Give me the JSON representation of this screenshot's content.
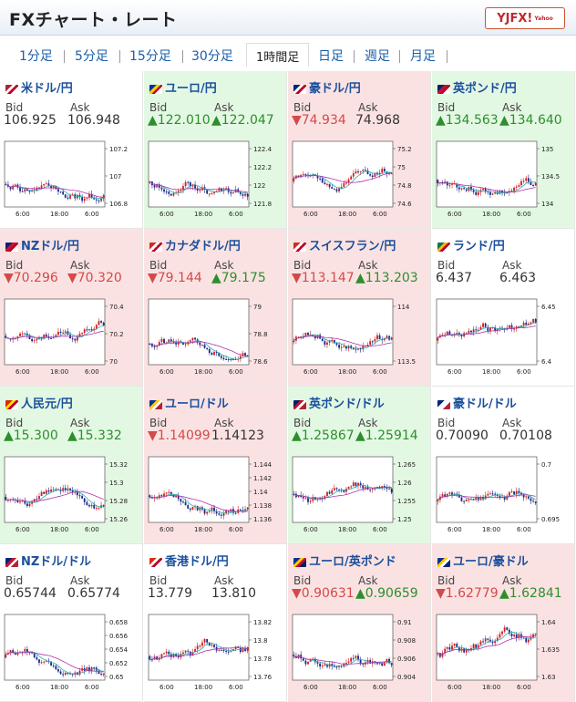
{
  "page": {
    "title": "FXチャート・レート",
    "logo": "YJFX!",
    "logo_sub": "Yahoo"
  },
  "tabs": [
    "1分足",
    "5分足",
    "15分足",
    "30分足",
    "1時間足",
    "日足",
    "週足",
    "月足"
  ],
  "active_tab": "1時間足",
  "colors": {
    "up_bg": "#e3f8e3",
    "down_bg": "#fbe2e2",
    "up_text": "#2c8f2c",
    "down_text": "#d34a4a",
    "candle_up": "#d02020",
    "candle_down": "#1a2a88",
    "ma_short": "#2bb0b0",
    "ma_long": "#b030b0"
  },
  "pairs": [
    {
      "name": "米ドル/円",
      "icon": "us-jp-flag-icon",
      "status": "flat",
      "bid_label": "Bid",
      "ask_label": "Ask",
      "bid": "106.925",
      "ask": "106.948",
      "bid_dir": "flat",
      "ask_dir": "flat",
      "x_ticks": [
        "6:00",
        "18:00",
        "6:00"
      ],
      "y_ticks": [
        "107.2",
        "107",
        "106.8"
      ]
    },
    {
      "name": "ユーロ/円",
      "icon": "eu-jp-flag-icon",
      "status": "up",
      "bid_label": "Bid",
      "ask_label": "Ask",
      "bid": "▲122.010",
      "ask": "▲122.047",
      "bid_dir": "up",
      "ask_dir": "up",
      "x_ticks": [
        "6:00",
        "18:00",
        "6:00"
      ],
      "y_ticks": [
        "122.4",
        "122.2",
        "122",
        "121.8"
      ]
    },
    {
      "name": "豪ドル/円",
      "icon": "au-jp-flag-icon",
      "status": "down",
      "bid_label": "Bid",
      "ask_label": "Ask",
      "bid": "▼74.934",
      "ask": "74.968",
      "bid_dir": "down",
      "ask_dir": "flat",
      "x_ticks": [
        "6:00",
        "18:00",
        "6:00"
      ],
      "y_ticks": [
        "75.2",
        "75",
        "74.8",
        "74.6"
      ]
    },
    {
      "name": "英ポンド/円",
      "icon": "gb-jp-flag-icon",
      "status": "up",
      "bid_label": "Bid",
      "ask_label": "Ask",
      "bid": "▲134.563",
      "ask": "▲134.640",
      "bid_dir": "up",
      "ask_dir": "up",
      "x_ticks": [
        "6:00",
        "18:00",
        "6:00"
      ],
      "y_ticks": [
        "135",
        "134.5",
        "134"
      ]
    },
    {
      "name": "NZドル/円",
      "icon": "nz-jp-flag-icon",
      "status": "down",
      "bid_label": "Bid",
      "ask_label": "Ask",
      "bid": "▼70.296",
      "ask": "▼70.320",
      "bid_dir": "down",
      "ask_dir": "down",
      "x_ticks": [
        "6:00",
        "18:00",
        "6:00"
      ],
      "y_ticks": [
        "70.4",
        "70.2",
        "70"
      ]
    },
    {
      "name": "カナダドル/円",
      "icon": "ca-jp-flag-icon",
      "status": "down",
      "bid_label": "Bid",
      "ask_label": "Ask",
      "bid": "▼79.144",
      "ask": "▲79.175",
      "bid_dir": "down",
      "ask_dir": "up",
      "x_ticks": [
        "6:00",
        "18:00",
        "6:00"
      ],
      "y_ticks": [
        "79",
        "78.8",
        "78.6"
      ]
    },
    {
      "name": "スイスフラン/円",
      "icon": "ch-jp-flag-icon",
      "status": "down",
      "bid_label": "Bid",
      "ask_label": "Ask",
      "bid": "▼113.147",
      "ask": "▲113.203",
      "bid_dir": "down",
      "ask_dir": "up",
      "x_ticks": [
        "6:00",
        "18:00",
        "6:00"
      ],
      "y_ticks": [
        "114",
        "113.5"
      ]
    },
    {
      "name": "ランド/円",
      "icon": "za-jp-flag-icon",
      "status": "flat",
      "bid_label": "Bid",
      "ask_label": "Ask",
      "bid": "6.437",
      "ask": "6.463",
      "bid_dir": "flat",
      "ask_dir": "flat",
      "x_ticks": [
        "6:00",
        "18:00",
        "6:00"
      ],
      "y_ticks": [
        "6.45",
        "6.4"
      ]
    },
    {
      "name": "人民元/円",
      "icon": "cn-jp-flag-icon",
      "status": "up",
      "bid_label": "Bid",
      "ask_label": "Ask",
      "bid": "▲15.300",
      "ask": "▲15.332",
      "bid_dir": "up",
      "ask_dir": "up",
      "x_ticks": [
        "6:00",
        "18:00",
        "6:00"
      ],
      "y_ticks": [
        "15.32",
        "15.3",
        "15.28",
        "15.26"
      ]
    },
    {
      "name": "ユーロ/ドル",
      "icon": "eu-us-flag-icon",
      "status": "down",
      "bid_label": "Bid",
      "ask_label": "Ask",
      "bid": "▼1.14099",
      "ask": "1.14123",
      "bid_dir": "down",
      "ask_dir": "flat",
      "x_ticks": [
        "6:00",
        "18:00",
        "6:00"
      ],
      "y_ticks": [
        "1.144",
        "1.142",
        "1.14",
        "1.138",
        "1.136"
      ]
    },
    {
      "name": "英ポンド/ドル",
      "icon": "gb-us-flag-icon",
      "status": "up",
      "bid_label": "Bid",
      "ask_label": "Ask",
      "bid": "▲1.25867",
      "ask": "▲1.25914",
      "bid_dir": "up",
      "ask_dir": "up",
      "x_ticks": [
        "6:00",
        "18:00",
        "6:00"
      ],
      "y_ticks": [
        "1.265",
        "1.26",
        "1.255",
        "1.25"
      ]
    },
    {
      "name": "豪ドル/ドル",
      "icon": "au-us-flag-icon",
      "status": "flat",
      "bid_label": "Bid",
      "ask_label": "Ask",
      "bid": "0.70090",
      "ask": "0.70108",
      "bid_dir": "flat",
      "ask_dir": "flat",
      "x_ticks": [
        "6:00",
        "18:00",
        "6:00"
      ],
      "y_ticks": [
        "0.7",
        "0.695"
      ]
    },
    {
      "name": "NZドル/ドル",
      "icon": "nz-us-flag-icon",
      "status": "flat",
      "bid_label": "Bid",
      "ask_label": "Ask",
      "bid": "0.65744",
      "ask": "0.65774",
      "bid_dir": "flat",
      "ask_dir": "flat",
      "x_ticks": [
        "6:00",
        "18:00",
        "6:00"
      ],
      "y_ticks": [
        "0.658",
        "0.656",
        "0.654",
        "0.652",
        "0.65"
      ]
    },
    {
      "name": "香港ドル/円",
      "icon": "hk-jp-flag-icon",
      "status": "flat",
      "bid_label": "Bid",
      "ask_label": "Ask",
      "bid": "13.779",
      "ask": "13.810",
      "bid_dir": "flat",
      "ask_dir": "flat",
      "x_ticks": [
        "6:00",
        "18:00",
        "6:00"
      ],
      "y_ticks": [
        "13.82",
        "13.8",
        "13.78",
        "13.76"
      ]
    },
    {
      "name": "ユーロ/英ポンド",
      "icon": "eu-gb-flag-icon",
      "status": "down",
      "bid_label": "Bid",
      "ask_label": "Ask",
      "bid": "▼0.90631",
      "ask": "▲0.90659",
      "bid_dir": "down",
      "ask_dir": "up",
      "x_ticks": [
        "6:00",
        "18:00",
        "6:00"
      ],
      "y_ticks": [
        "0.91",
        "0.908",
        "0.906",
        "0.904"
      ]
    },
    {
      "name": "ユーロ/豪ドル",
      "icon": "eu-au-flag-icon",
      "status": "down",
      "bid_label": "Bid",
      "ask_label": "Ask",
      "bid": "▼1.62779",
      "ask": "▲1.62841",
      "bid_dir": "down",
      "ask_dir": "up",
      "x_ticks": [
        "6:00",
        "18:00",
        "6:00"
      ],
      "y_ticks": [
        "1.64",
        "1.635",
        "1.63"
      ]
    }
  ]
}
